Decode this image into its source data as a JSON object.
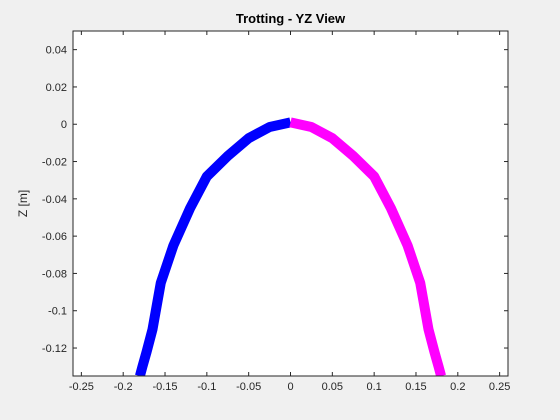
{
  "chart_data": {
    "type": "line",
    "title": "Trotting - YZ View",
    "xlabel": "",
    "ylabel": "Z [m]",
    "xlim": [
      -0.26,
      0.26
    ],
    "ylim": [
      -0.135,
      0.05
    ],
    "xticks": [
      -0.25,
      -0.2,
      -0.15,
      -0.1,
      -0.05,
      0,
      0.05,
      0.1,
      0.15,
      0.2,
      0.25
    ],
    "xtick_labels": [
      "-0.25",
      "-0.2",
      "-0.15",
      "-0.1",
      "-0.05",
      "0",
      "0.05",
      "0.1",
      "0.15",
      "0.2",
      "0.25"
    ],
    "yticks": [
      0.04,
      0.02,
      0,
      -0.02,
      -0.04,
      -0.06,
      -0.08,
      -0.1,
      -0.12
    ],
    "ytick_labels": [
      "0.04",
      "0.02",
      "0",
      "-0.02",
      "-0.04",
      "-0.06",
      "-0.08",
      "-0.1",
      "-0.12"
    ],
    "grid": false,
    "series": [
      {
        "color": "#0000ff",
        "x": [
          0.0,
          -0.025,
          -0.05,
          -0.075,
          -0.1,
          -0.12,
          -0.14,
          -0.155,
          -0.165,
          -0.172,
          -0.177,
          -0.18
        ],
        "y": [
          0.001,
          -0.0015,
          -0.0075,
          -0.017,
          -0.028,
          -0.045,
          -0.065,
          -0.085,
          -0.11,
          -0.122,
          -0.13,
          -0.135
        ]
      },
      {
        "color": "#ff00ff",
        "x": [
          0.0,
          0.025,
          0.05,
          0.075,
          0.1,
          0.12,
          0.14,
          0.155,
          0.165,
          0.172,
          0.177,
          0.18
        ],
        "y": [
          0.001,
          -0.0015,
          -0.0075,
          -0.017,
          -0.028,
          -0.045,
          -0.065,
          -0.085,
          -0.11,
          -0.122,
          -0.13,
          -0.135
        ]
      }
    ]
  }
}
